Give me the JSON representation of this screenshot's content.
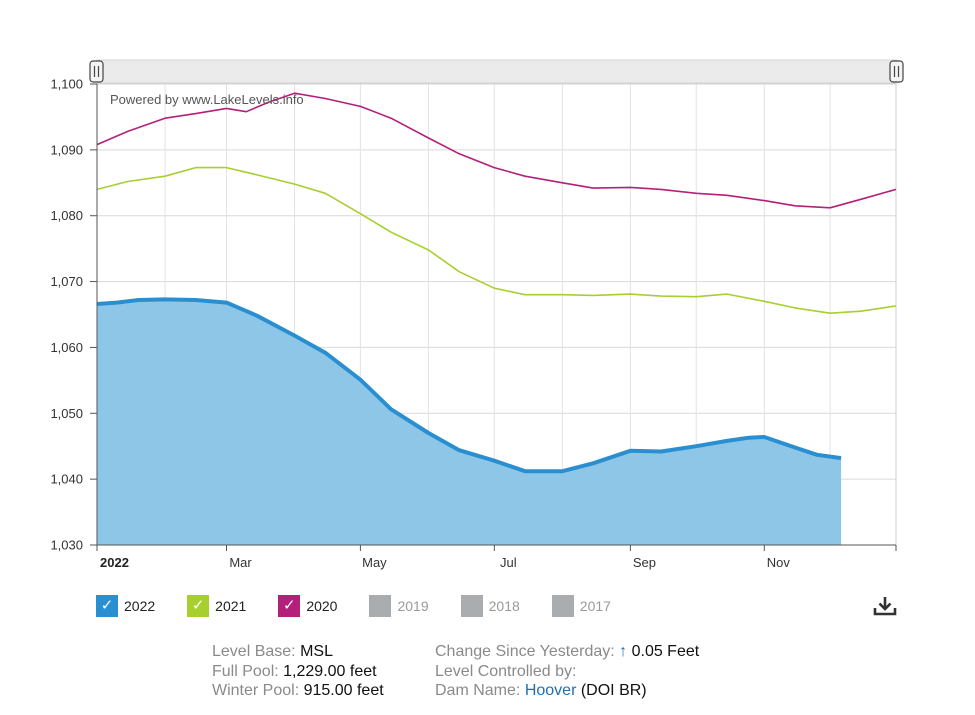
{
  "watermark": "Powered by www.LakeLevels.info",
  "chart_data": {
    "type": "area",
    "x_unit": "date",
    "x_range": [
      "2022-01-01",
      "2022-12-31"
    ],
    "ylim": [
      1030,
      1100
    ],
    "y_ticks": [
      1030,
      1040,
      1050,
      1060,
      1070,
      1080,
      1090,
      1100
    ],
    "y_tick_labels": [
      "1,030",
      "1,040",
      "1,050",
      "1,060",
      "1,070",
      "1,080",
      "1,090",
      "1,100"
    ],
    "x_ticks": [
      "2022-01-01",
      "2022-03-01",
      "2022-05-01",
      "2022-07-01",
      "2022-09-01",
      "2022-11-01"
    ],
    "x_tick_labels": [
      "2022",
      "Mar",
      "May",
      "Jul",
      "Sep",
      "Nov"
    ],
    "grid": true,
    "legend_position": "bottom",
    "series": [
      {
        "name": "2020",
        "color": "#b3207a",
        "fill": false,
        "x": [
          "2022-01-01",
          "2022-01-15",
          "2022-02-01",
          "2022-02-15",
          "2022-03-01",
          "2022-03-10",
          "2022-03-20",
          "2022-04-01",
          "2022-04-15",
          "2022-05-01",
          "2022-05-15",
          "2022-06-01",
          "2022-06-15",
          "2022-07-01",
          "2022-07-15",
          "2022-08-01",
          "2022-08-15",
          "2022-09-01",
          "2022-09-15",
          "2022-10-01",
          "2022-10-15",
          "2022-11-01",
          "2022-11-15",
          "2022-12-01",
          "2022-12-15",
          "2022-12-31"
        ],
        "y": [
          1090.8,
          1092.8,
          1094.8,
          1095.5,
          1096.3,
          1095.8,
          1097.2,
          1098.6,
          1097.8,
          1096.6,
          1094.8,
          1091.8,
          1089.4,
          1087.3,
          1086.0,
          1085.0,
          1084.2,
          1084.3,
          1084.0,
          1083.4,
          1083.1,
          1082.3,
          1081.5,
          1081.2,
          1082.5,
          1084.0
        ]
      },
      {
        "name": "2021",
        "color": "#a7cf30",
        "fill": false,
        "x": [
          "2022-01-01",
          "2022-01-15",
          "2022-02-01",
          "2022-02-15",
          "2022-03-01",
          "2022-03-15",
          "2022-04-01",
          "2022-04-15",
          "2022-05-01",
          "2022-05-15",
          "2022-06-01",
          "2022-06-15",
          "2022-07-01",
          "2022-07-15",
          "2022-08-01",
          "2022-08-15",
          "2022-09-01",
          "2022-09-15",
          "2022-10-01",
          "2022-10-15",
          "2022-11-01",
          "2022-11-15",
          "2022-12-01",
          "2022-12-15",
          "2022-12-31"
        ],
        "y": [
          1084.0,
          1085.2,
          1086.0,
          1087.3,
          1087.3,
          1086.2,
          1084.8,
          1083.4,
          1080.3,
          1077.5,
          1074.8,
          1071.5,
          1069.0,
          1068.0,
          1068.0,
          1067.9,
          1068.1,
          1067.8,
          1067.7,
          1068.1,
          1067.0,
          1066.0,
          1065.2,
          1065.5,
          1066.3
        ]
      },
      {
        "name": "2022",
        "color": "#2a8fd0",
        "fill": true,
        "fill_color": "#8ec6e8",
        "x": [
          "2022-01-01",
          "2022-01-10",
          "2022-01-20",
          "2022-02-01",
          "2022-02-15",
          "2022-03-01",
          "2022-03-15",
          "2022-04-01",
          "2022-04-15",
          "2022-05-01",
          "2022-05-15",
          "2022-06-01",
          "2022-06-15",
          "2022-07-01",
          "2022-07-15",
          "2022-08-01",
          "2022-08-15",
          "2022-09-01",
          "2022-09-15",
          "2022-10-01",
          "2022-10-15",
          "2022-10-25",
          "2022-11-01",
          "2022-11-15",
          "2022-11-25",
          "2022-12-06"
        ],
        "y": [
          1066.6,
          1066.8,
          1067.2,
          1067.3,
          1067.2,
          1066.8,
          1064.8,
          1061.8,
          1059.2,
          1055.1,
          1050.6,
          1047.0,
          1044.4,
          1042.8,
          1041.2,
          1041.2,
          1042.4,
          1044.3,
          1044.2,
          1045.0,
          1045.8,
          1046.3,
          1046.4,
          1044.8,
          1043.7,
          1043.2
        ]
      }
    ]
  },
  "legend": [
    {
      "label": "2022",
      "color": "#2a8fd0",
      "checked": true,
      "mark": "✓"
    },
    {
      "label": "2021",
      "color": "#a7cf30",
      "checked": true,
      "mark": "✓"
    },
    {
      "label": "2020",
      "color": "#b3207a",
      "checked": true,
      "mark": "✓"
    },
    {
      "label": "2019",
      "color": "#a9adb0",
      "checked": false,
      "mark": ""
    },
    {
      "label": "2018",
      "color": "#a9adb0",
      "checked": false,
      "mark": ""
    },
    {
      "label": "2017",
      "color": "#a9adb0",
      "checked": false,
      "mark": ""
    }
  ],
  "download_icon": "download-icon",
  "info": {
    "level_base_label": "Level Base:",
    "level_base_value": "MSL",
    "full_pool_label": "Full Pool:",
    "full_pool_value": "1,229.00 feet",
    "winter_pool_label": "Winter Pool:",
    "winter_pool_value": "915.00 feet",
    "change_label": "Change Since Yesterday:",
    "change_arrow": "↑",
    "change_value": "0.05 Feet",
    "controlled_label": "Level Controlled by:",
    "dam_label": "Dam Name:",
    "dam_link": "Hoover",
    "dam_suffix": "(DOI BR)",
    "link_color": "#1f6fae"
  }
}
